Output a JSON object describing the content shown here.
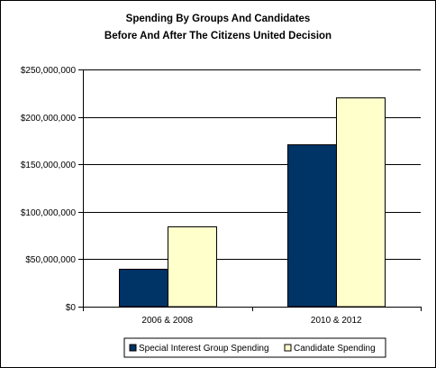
{
  "chart_data": {
    "type": "bar",
    "title": "Spending By Groups And Candidates",
    "subtitle": "Before And After The Citizens United Decision",
    "categories": [
      "2006 & 2008",
      "2010 & 2012"
    ],
    "series": [
      {
        "name": "Special Interest Group Spending",
        "values": [
          40000000,
          171000000
        ],
        "color": "#003366"
      },
      {
        "name": "Candidate Spending",
        "values": [
          85000000,
          221000000
        ],
        "color": "#FFFFCC"
      }
    ],
    "ylim": [
      0,
      250000000
    ],
    "yticks": [
      0,
      50000000,
      100000000,
      150000000,
      200000000,
      250000000
    ],
    "ytick_labels": [
      "$0",
      "$50,000,000",
      "$100,000,000",
      "$150,000,000",
      "$200,000,000",
      "$250,000,000"
    ],
    "grid": true,
    "legend_position": "bottom"
  }
}
